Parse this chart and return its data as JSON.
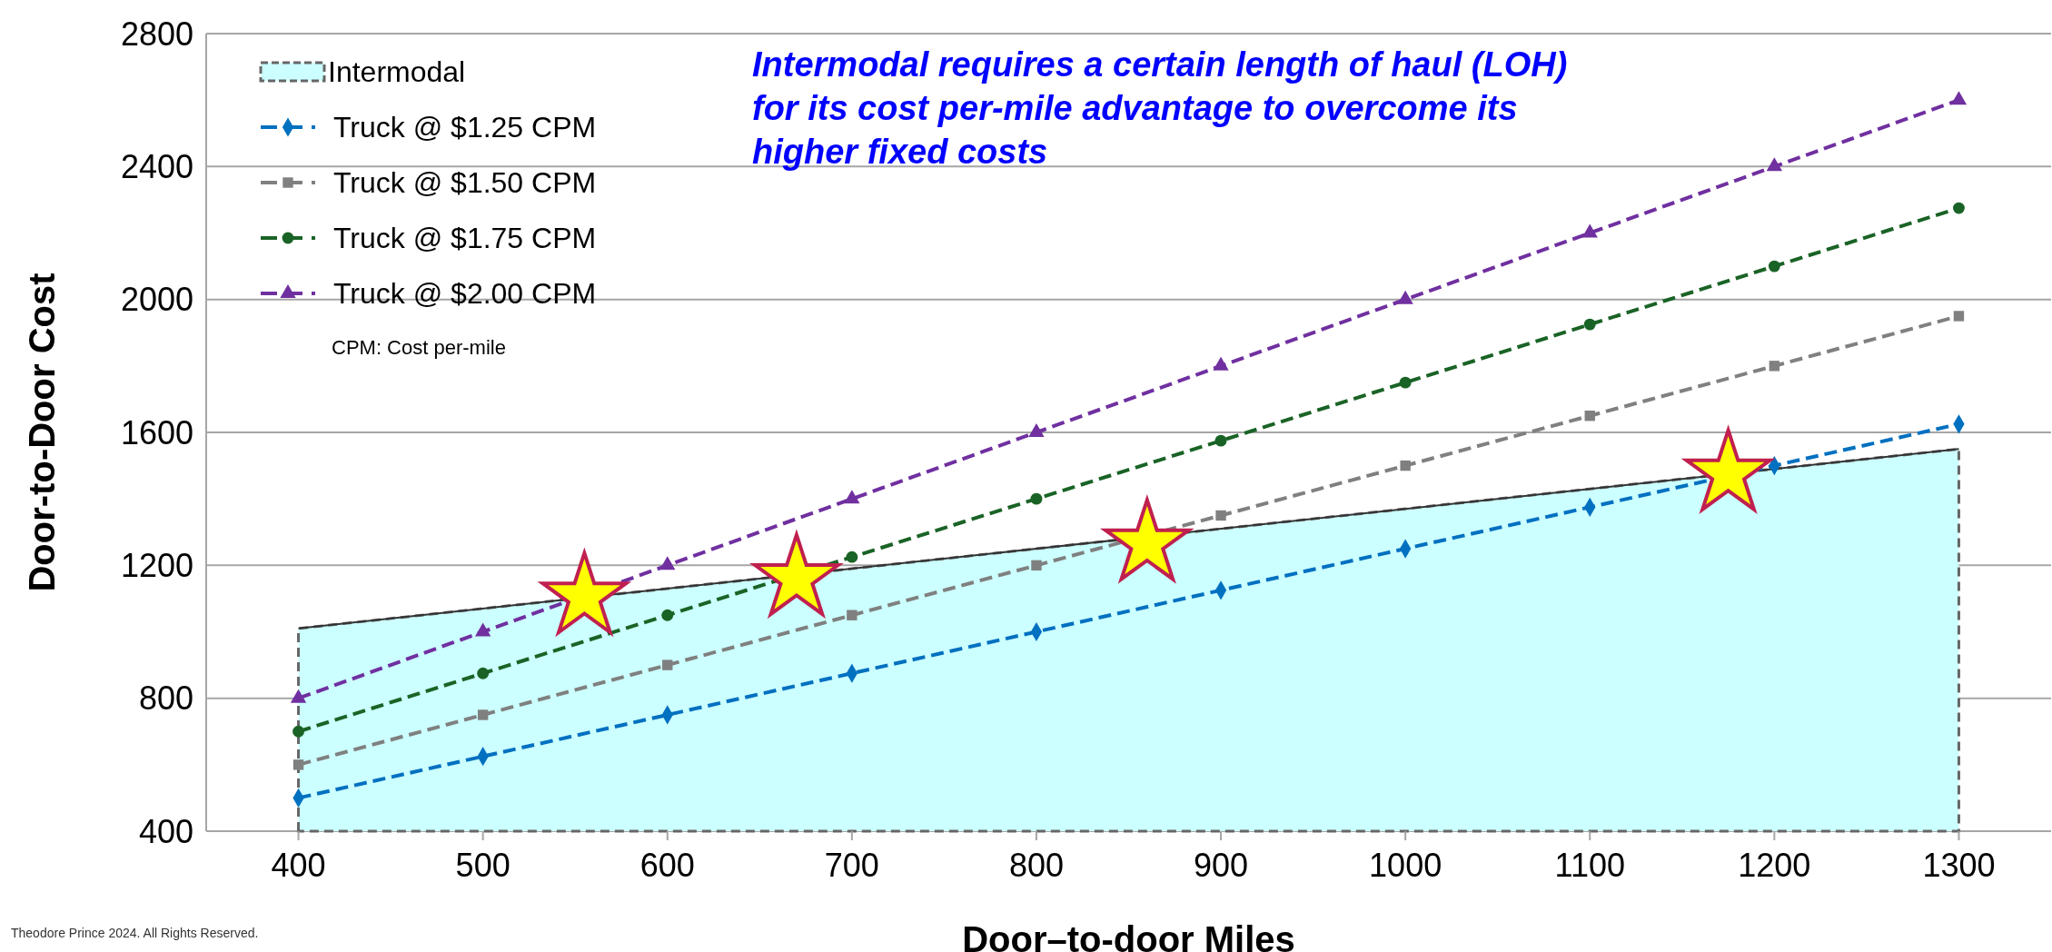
{
  "chart_data": {
    "type": "line",
    "xlabel": "Door–to-door Miles",
    "ylabel": "Door-to-Door Cost",
    "xlim": [
      350,
      1350
    ],
    "xticks": [
      400,
      500,
      600,
      700,
      800,
      900,
      1000,
      1100,
      1200,
      1300
    ],
    "ylim": [
      400,
      2800
    ],
    "yticks": [
      400,
      800,
      1200,
      1600,
      2000,
      2400,
      2800
    ],
    "grid": "y",
    "legend": "top left",
    "line_style": "dashed",
    "annotations": [
      "Intermodal requires a certain length of haul (LOH) for its cost per-mile advantage to overcome its higher fixed costs",
      "CPM: Cost per-mile",
      "Theodore Prince 2024. All Rights Reserved."
    ],
    "series": [
      {
        "name": "Intermodal",
        "type": "area",
        "color": "#ccffff",
        "x": [
          400,
          1300
        ],
        "values": [
          1010,
          1550
        ]
      },
      {
        "name": "Truck @ $1.25 CPM",
        "color": "#0070c0",
        "marker": "diamond",
        "x": [
          400,
          500,
          600,
          700,
          800,
          900,
          1000,
          1100,
          1200,
          1300
        ],
        "values": [
          500,
          625,
          750,
          875,
          1000,
          1125,
          1250,
          1375,
          1500,
          1625
        ]
      },
      {
        "name": "Truck @ $1.50 CPM",
        "color": "#808080",
        "marker": "square",
        "x": [
          400,
          500,
          600,
          700,
          800,
          900,
          1000,
          1100,
          1200,
          1300
        ],
        "values": [
          600,
          750,
          900,
          1050,
          1200,
          1350,
          1500,
          1650,
          1800,
          1950
        ]
      },
      {
        "name": "Truck @ $1.75 CPM",
        "color": "#1a6326",
        "marker": "circle",
        "x": [
          400,
          500,
          600,
          700,
          800,
          900,
          1000,
          1100,
          1200,
          1300
        ],
        "values": [
          700,
          875,
          1050,
          1225,
          1400,
          1575,
          1750,
          1925,
          2100,
          2275
        ]
      },
      {
        "name": "Truck @ $2.00 CPM",
        "color": "#7030a0",
        "marker": "triangle",
        "x": [
          400,
          500,
          600,
          700,
          800,
          900,
          1000,
          1100,
          1200,
          1300
        ],
        "values": [
          800,
          1000,
          1200,
          1400,
          1600,
          1800,
          2000,
          2200,
          2400,
          2600
        ]
      },
      {
        "type": "scatter",
        "color": "#ffff00",
        "marker": "star",
        "x": [
          555,
          670,
          860,
          1175
        ],
        "values": [
          1105,
          1160,
          1265,
          1475
        ]
      }
    ]
  }
}
